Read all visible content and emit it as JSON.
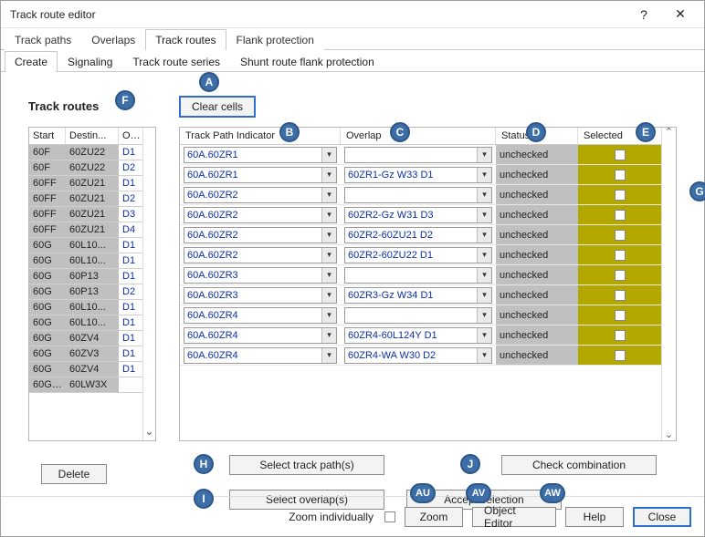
{
  "window": {
    "title": "Track route editor",
    "help_glyph": "?",
    "close_glyph": "✕"
  },
  "tabs": {
    "items": [
      "Track paths",
      "Overlaps",
      "Track routes",
      "Flank protection"
    ],
    "active_index": 2
  },
  "subtabs": {
    "items": [
      "Create",
      "Signaling",
      "Track route series",
      "Shunt route flank protection"
    ],
    "active_index": 0
  },
  "section_title": "Track routes",
  "clear_cells_label": "Clear cells",
  "left_table": {
    "columns": [
      "Start",
      "Destin...",
      "Ov..."
    ],
    "rows": [
      [
        "60F",
        "60ZU22",
        "D1"
      ],
      [
        "60F",
        "60ZU22",
        "D2"
      ],
      [
        "60FF",
        "60ZU21",
        "D1"
      ],
      [
        "60FF",
        "60ZU21",
        "D2"
      ],
      [
        "60FF",
        "60ZU21",
        "D3"
      ],
      [
        "60FF",
        "60ZU21",
        "D4"
      ],
      [
        "60G",
        "60L10...",
        "D1"
      ],
      [
        "60G",
        "60L10...",
        "D1"
      ],
      [
        "60G",
        "60P13",
        "D1"
      ],
      [
        "60G",
        "60P13",
        "D2"
      ],
      [
        "60G",
        "60L10...",
        "D1"
      ],
      [
        "60G",
        "60L10...",
        "D1"
      ],
      [
        "60G",
        "60ZV4",
        "D1"
      ],
      [
        "60G",
        "60ZV3",
        "D1"
      ],
      [
        "60G",
        "60ZV4",
        "D1"
      ],
      [
        "60G1...",
        "60LW3X",
        ""
      ]
    ]
  },
  "right_table": {
    "columns": [
      "Track Path Indicator",
      "Overlap",
      "Status",
      "Selected"
    ],
    "rows": [
      {
        "tpi": "60A.60ZR1",
        "ovl": "",
        "status": "unchecked"
      },
      {
        "tpi": "60A.60ZR1",
        "ovl": "60ZR1-Gz W33 D1",
        "status": "unchecked"
      },
      {
        "tpi": "60A.60ZR2",
        "ovl": "",
        "status": "unchecked"
      },
      {
        "tpi": "60A.60ZR2",
        "ovl": "60ZR2-Gz W31 D3",
        "status": "unchecked"
      },
      {
        "tpi": "60A.60ZR2",
        "ovl": "60ZR2-60ZU21 D2",
        "status": "unchecked"
      },
      {
        "tpi": "60A.60ZR2",
        "ovl": "60ZR2-60ZU22 D1",
        "status": "unchecked"
      },
      {
        "tpi": "60A.60ZR3",
        "ovl": "",
        "status": "unchecked"
      },
      {
        "tpi": "60A.60ZR3",
        "ovl": "60ZR3-Gz W34 D1",
        "status": "unchecked"
      },
      {
        "tpi": "60A.60ZR4",
        "ovl": "",
        "status": "unchecked"
      },
      {
        "tpi": "60A.60ZR4",
        "ovl": "60ZR4-60L124Y D1",
        "status": "unchecked"
      },
      {
        "tpi": "60A.60ZR4",
        "ovl": "60ZR4-WA W30 D2",
        "status": "unchecked"
      }
    ]
  },
  "buttons": {
    "select_track_paths": "Select track path(s)",
    "select_overlaps": "Select overlap(s)",
    "check_combination": "Check combination",
    "accept_selection": "Accept selection",
    "delete": "Delete"
  },
  "footer": {
    "zoom_individually": "Zoom individually",
    "zoom": "Zoom",
    "object_editor": "Object Editor",
    "help": "Help",
    "close": "Close"
  },
  "badges": {
    "A": "A",
    "B": "B",
    "C": "C",
    "D": "D",
    "E": "E",
    "F": "F",
    "G": "G",
    "H": "H",
    "I": "I",
    "J": "J",
    "AU": "AU",
    "AV": "AV",
    "AW": "AW"
  },
  "colors": {
    "selected_bg": "#b2a800",
    "gray_cell": "#c0c0c0",
    "link": "#0b2fa8",
    "badge_fill": "#3d6ea8",
    "badge_border": "#2c5688"
  }
}
